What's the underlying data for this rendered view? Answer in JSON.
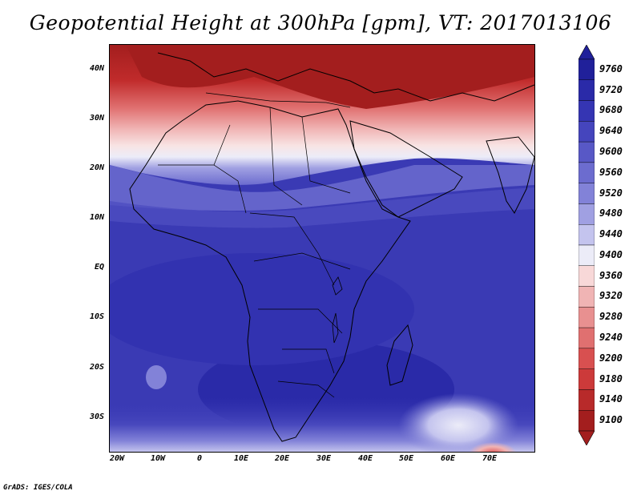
{
  "title": "Geopotential Height at 300hPa [gpm], VT: 2017013106",
  "credit": "GrADS: IGES/COLA",
  "lat_labels": [
    "40N",
    "30N",
    "20N",
    "10N",
    "EQ",
    "10S",
    "20S",
    "30S"
  ],
  "lon_labels": [
    "20W",
    "10W",
    "0",
    "10E",
    "20E",
    "30E",
    "40E",
    "50E",
    "60E",
    "70E"
  ],
  "colorbar": {
    "levels": [
      "9760",
      "9720",
      "9680",
      "9640",
      "9600",
      "9560",
      "9520",
      "9480",
      "9440",
      "9400",
      "9360",
      "9320",
      "9280",
      "9240",
      "9200",
      "9180",
      "9140",
      "9100"
    ],
    "colors": [
      "#20209a",
      "#2a2aa8",
      "#3535b3",
      "#4545bd",
      "#5858c6",
      "#6c6ccf",
      "#8282d8",
      "#a0a0e2",
      "#c4c4ee",
      "#ececf8",
      "#f8d8d8",
      "#f0b4b4",
      "#e89090",
      "#e07070",
      "#d85050",
      "#cc3a3a",
      "#b82a2a",
      "#a31e1e"
    ]
  }
}
